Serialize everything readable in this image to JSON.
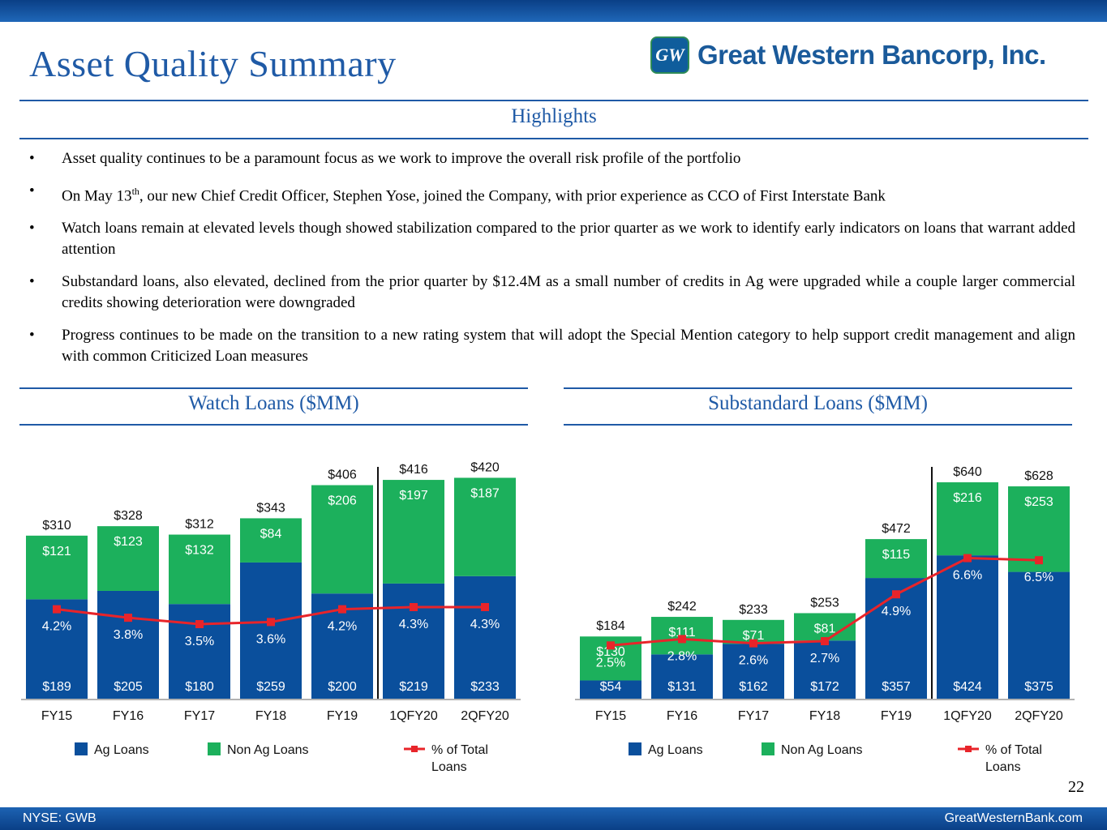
{
  "page": {
    "title": "Asset Quality Summary",
    "logo_text": "Great Western Bancorp, Inc.",
    "logo_mark": "GW",
    "highlights_heading": "Highlights",
    "page_number": "22",
    "footer_left": "NYSE: GWB",
    "footer_right": "GreatWesternBank.com"
  },
  "bullets": [
    {
      "text": "Asset quality continues to be a paramount focus as we work to improve the overall risk profile of the portfolio"
    },
    {
      "pre": "On May 13",
      "sup": "th",
      "post": ", our new Chief Credit Officer, Stephen Yose, joined the Company, with prior experience as CCO of First Interstate Bank"
    },
    {
      "text": "Watch loans remain at elevated levels though showed stabilization compared to the prior quarter as we work to identify early indicators on loans that warrant added attention"
    },
    {
      "text": "Substandard loans, also elevated, declined from the prior quarter by $12.4M as a small number of credits in Ag were upgraded while a couple larger commercial credits showing deterioration were downgraded"
    },
    {
      "text": "Progress continues to be made on the transition to a new rating system that will adopt the Special Mention category to help support credit management and align with common Criticized Loan measures"
    }
  ],
  "colors": {
    "ag": "#0a4f9c",
    "nonag": "#1cb05c",
    "line": "#e8242a",
    "accent": "#1f5aa6"
  },
  "chart_data": [
    {
      "type": "bar",
      "stacked": true,
      "title": "Watch Loans ($MM)",
      "categories": [
        "FY15",
        "FY16",
        "FY17",
        "FY18",
        "FY19",
        "1QFY20",
        "2QFY20"
      ],
      "series": [
        {
          "name": "Ag Loans",
          "values": [
            189,
            205,
            180,
            259,
            200,
            219,
            233
          ],
          "labels": [
            "$189",
            "$205",
            "$180",
            "$259",
            "$200",
            "$219",
            "$233"
          ]
        },
        {
          "name": "Non Ag Loans",
          "values": [
            121,
            123,
            132,
            84,
            206,
            197,
            187
          ],
          "labels": [
            "$121",
            "$123",
            "$132",
            "$84",
            "$206",
            "$197",
            "$187"
          ]
        }
      ],
      "totals": [
        "$310",
        "$328",
        "$312",
        "$343",
        "$406",
        "$416",
        "$420"
      ],
      "total_values": [
        310,
        328,
        312,
        343,
        406,
        416,
        420
      ],
      "line": {
        "name": "% of Total Loans",
        "values": [
          4.2,
          3.8,
          3.5,
          3.6,
          4.2,
          4.3,
          4.3
        ],
        "labels": [
          "4.2%",
          "3.8%",
          "3.5%",
          "3.6%",
          "4.2%",
          "4.3%",
          "4.3%"
        ]
      },
      "ylim": [
        0,
        450
      ],
      "line_ylim": [
        0,
        10
      ],
      "divider_after_index": 4,
      "legend": [
        "Ag Loans",
        "Non Ag Loans",
        "% of Total Loans"
      ]
    },
    {
      "type": "bar",
      "stacked": true,
      "title": "Substandard Loans ($MM)",
      "categories": [
        "FY15",
        "FY16",
        "FY17",
        "FY18",
        "FY19",
        "1QFY20",
        "2QFY20"
      ],
      "series": [
        {
          "name": "Ag Loans",
          "values": [
            54,
            131,
            162,
            172,
            357,
            424,
            375
          ],
          "labels": [
            "$54",
            "$131",
            "$162",
            "$172",
            "$357",
            "$424",
            "$375"
          ]
        },
        {
          "name": "Non Ag Loans",
          "values": [
            130,
            111,
            71,
            81,
            115,
            216,
            253
          ],
          "labels": [
            "$130",
            "$111",
            "$71",
            "$81",
            "$115",
            "$216",
            "$253"
          ]
        }
      ],
      "totals": [
        "$184",
        "$242",
        "$233",
        "$253",
        "$472",
        "$640",
        "$628"
      ],
      "total_values": [
        184,
        242,
        233,
        253,
        472,
        640,
        628
      ],
      "line": {
        "name": "% of Total Loans",
        "values": [
          2.5,
          2.8,
          2.6,
          2.7,
          4.9,
          6.6,
          6.5
        ],
        "labels": [
          "2.5%",
          "2.8%",
          "2.6%",
          "2.7%",
          "4.9%",
          "6.6%",
          "6.5%"
        ]
      },
      "ylim": [
        0,
        700
      ],
      "line_ylim": [
        0,
        10
      ],
      "divider_after_index": 4,
      "legend": [
        "Ag Loans",
        "Non Ag Loans",
        "% of Total Loans"
      ]
    }
  ]
}
